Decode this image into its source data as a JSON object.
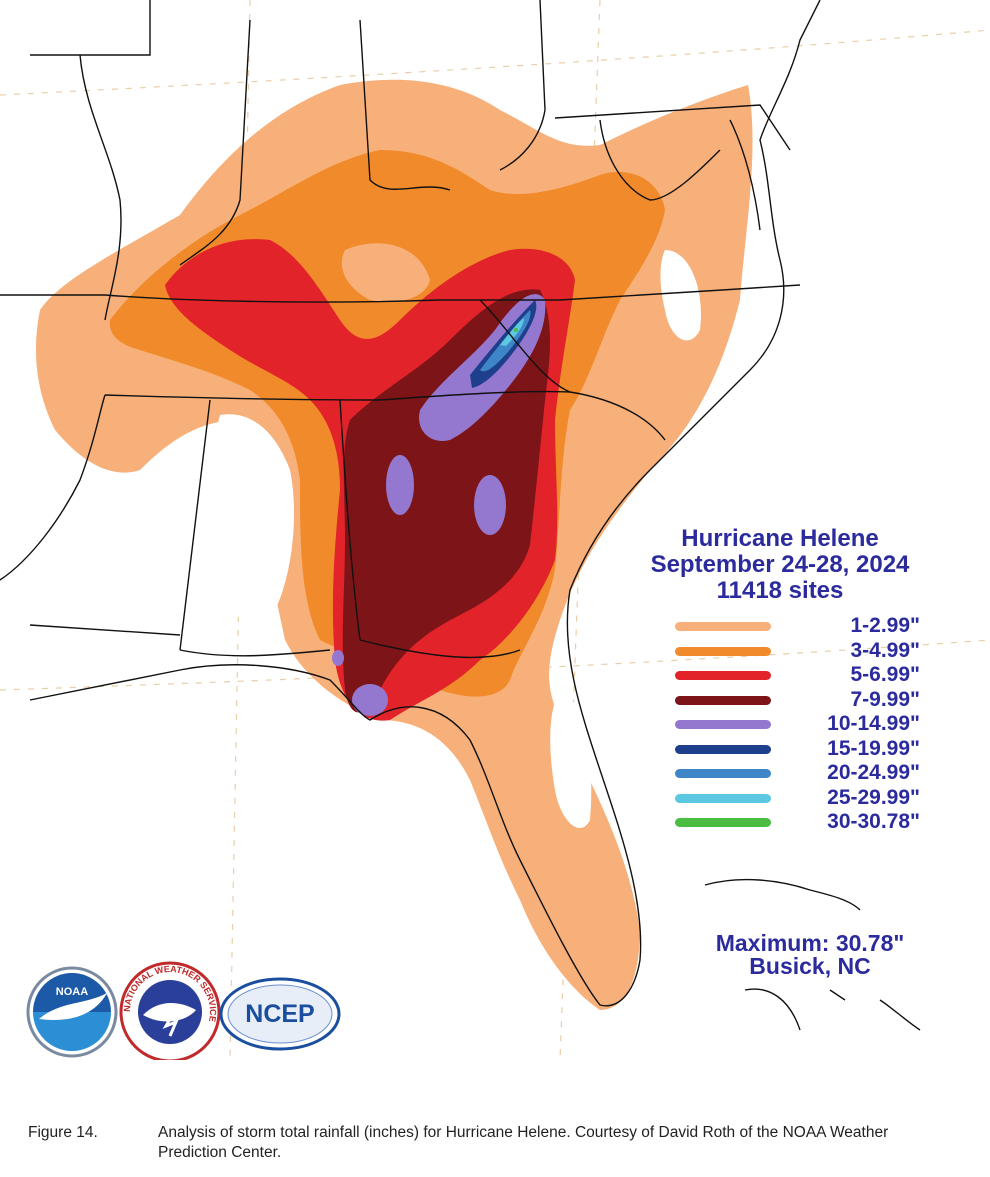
{
  "map": {
    "title": "Hurricane Helene",
    "dates": "September 24-28, 2024",
    "sites": "11418 sites",
    "maximum": "Maximum:  30.78\"",
    "maximum_location": "Busick, NC"
  },
  "legend": [
    {
      "label": "1-2.99\"",
      "color": "#f8b07a"
    },
    {
      "label": "3-4.99\"",
      "color": "#f08a2a"
    },
    {
      "label": "5-6.99\"",
      "color": "#e2232a"
    },
    {
      "label": "7-9.99\"",
      "color": "#7d1418"
    },
    {
      "label": "10-14.99\"",
      "color": "#9477cf"
    },
    {
      "label": "15-19.99\"",
      "color": "#1e3f8c"
    },
    {
      "label": "20-24.99\"",
      "color": "#3f86c9"
    },
    {
      "label": "25-29.99\"",
      "color": "#5cc7e0"
    },
    {
      "label": "30-30.78\"",
      "color": "#4bbd43"
    }
  ],
  "logos": {
    "noaa": "NOAA",
    "nws": "NATIONAL WEATHER SERVICE",
    "ncep": "NCEP"
  },
  "caption": {
    "figure": "Figure 14.",
    "text": "Analysis of storm total rainfall (inches) for Hurricane Helene. Courtesy of David Roth of the NOAA Weather Prediction Center."
  }
}
